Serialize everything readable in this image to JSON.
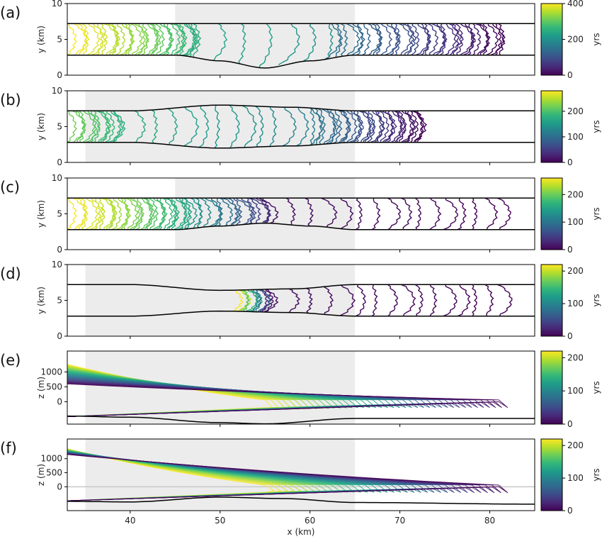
{
  "figure": {
    "xlabel": "x (km)",
    "colormap": [
      "#440154",
      "#482878",
      "#3e4a89",
      "#31688e",
      "#26828e",
      "#1f9e89",
      "#35b779",
      "#6ece58",
      "#b5de2b",
      "#fde725"
    ],
    "shade_color": "#ececec"
  },
  "chart_data": [
    {
      "type": "line",
      "label": "(a)",
      "ylabel": "y (km)",
      "xlim": [
        33,
        85
      ],
      "ylim": [
        0,
        10
      ],
      "yticks": [
        0,
        5,
        10
      ],
      "shade": [
        45,
        65
      ],
      "colorbar": {
        "label": "yrs",
        "max": 400,
        "ticks": [
          0,
          200,
          400
        ]
      },
      "channel": {
        "type": "plan",
        "top": [
          [
            33,
            7.2
          ],
          [
            85,
            7.2
          ]
        ],
        "bottom": [
          [
            33,
            2.8
          ],
          [
            45,
            2.8
          ],
          [
            50,
            2.0
          ],
          [
            55,
            1.0
          ],
          [
            60,
            2.0
          ],
          [
            65,
            2.8
          ],
          [
            85,
            2.8
          ]
        ]
      },
      "contours": [
        {
          "x_start": 33,
          "x_end": 47,
          "count": 34,
          "t_start": 400,
          "t_end": 250
        },
        {
          "x_start": 46,
          "x_end": 62,
          "count": 7,
          "t_start": 240,
          "t_end": 200
        },
        {
          "x_start": 62,
          "x_end": 81,
          "count": 40,
          "t_start": 150,
          "t_end": 0
        }
      ]
    },
    {
      "type": "line",
      "label": "(b)",
      "ylabel": "y (km)",
      "xlim": [
        33,
        85
      ],
      "ylim": [
        0,
        10
      ],
      "yticks": [
        0,
        5,
        10
      ],
      "shade": [
        35,
        65
      ],
      "colorbar": {
        "label": "yrs",
        "max": 280,
        "ticks": [
          0,
          100,
          200
        ]
      },
      "channel": {
        "type": "plan",
        "top": [
          [
            33,
            7.2
          ],
          [
            40,
            7.2
          ],
          [
            50,
            8.0
          ],
          [
            58,
            7.7
          ],
          [
            65,
            7.2
          ],
          [
            85,
            7.2
          ]
        ],
        "bottom": [
          [
            33,
            2.8
          ],
          [
            40,
            2.8
          ],
          [
            50,
            2.0
          ],
          [
            58,
            2.3
          ],
          [
            65,
            2.8
          ],
          [
            85,
            2.8
          ]
        ]
      },
      "contours": [
        {
          "x_start": 33,
          "x_end": 38,
          "count": 14,
          "t_start": 220,
          "t_end": 180
        },
        {
          "x_start": 38,
          "x_end": 60,
          "count": 14,
          "t_start": 175,
          "t_end": 120
        },
        {
          "x_start": 60,
          "x_end": 72,
          "count": 36,
          "t_start": 110,
          "t_end": 0
        }
      ]
    },
    {
      "type": "line",
      "label": "(c)",
      "ylabel": "y (km)",
      "xlim": [
        33,
        85
      ],
      "ylim": [
        0,
        10
      ],
      "yticks": [
        0,
        5,
        10
      ],
      "shade": [
        45,
        65
      ],
      "colorbar": {
        "label": "yrs",
        "max": 260,
        "ticks": [
          0,
          100,
          200
        ]
      },
      "channel": {
        "type": "plan",
        "top": [
          [
            33,
            7.2
          ],
          [
            85,
            7.2
          ]
        ],
        "bottom": [
          [
            33,
            2.8
          ],
          [
            45,
            2.8
          ],
          [
            50,
            3.3
          ],
          [
            55,
            3.7
          ],
          [
            60,
            3.3
          ],
          [
            65,
            2.8
          ],
          [
            85,
            2.8
          ]
        ]
      },
      "contours": [
        {
          "x_start": 33,
          "x_end": 46,
          "count": 34,
          "t_start": 260,
          "t_end": 150
        },
        {
          "x_start": 46,
          "x_end": 55,
          "count": 18,
          "t_start": 140,
          "t_end": 30
        },
        {
          "x_start": 55,
          "x_end": 81,
          "count": 16,
          "t_start": 10,
          "t_end": 0
        }
      ]
    },
    {
      "type": "line",
      "label": "(d)",
      "ylabel": "y (km)",
      "xlim": [
        33,
        85
      ],
      "ylim": [
        0,
        10
      ],
      "yticks": [
        0,
        5,
        10
      ],
      "shade": [
        35,
        65
      ],
      "colorbar": {
        "label": "yrs",
        "max": 220,
        "ticks": [
          0,
          100,
          200
        ]
      },
      "channel": {
        "type": "plan",
        "top": [
          [
            33,
            7.2
          ],
          [
            40,
            7.2
          ],
          [
            50,
            6.4
          ],
          [
            58,
            6.6
          ],
          [
            65,
            7.2
          ],
          [
            85,
            7.2
          ]
        ],
        "bottom": [
          [
            33,
            2.8
          ],
          [
            40,
            2.8
          ],
          [
            50,
            3.5
          ],
          [
            58,
            3.3
          ],
          [
            65,
            2.8
          ],
          [
            85,
            2.8
          ]
        ]
      },
      "contours": [
        {
          "x_start": 51.5,
          "x_end": 55,
          "count": 12,
          "t_start": 220,
          "t_end": 10
        },
        {
          "x_start": 55,
          "x_end": 81,
          "count": 16,
          "t_start": 8,
          "t_end": 0
        }
      ]
    },
    {
      "type": "line",
      "label": "(e)",
      "ylabel": "z (m)",
      "xlim": [
        33,
        85
      ],
      "ylim": [
        -750,
        1700
      ],
      "yticks": [
        0,
        500,
        1000
      ],
      "shade": [
        35,
        65
      ],
      "colorbar": {
        "label": "yrs",
        "max": 220,
        "ticks": [
          0,
          100,
          200
        ]
      },
      "channel": {
        "type": "section",
        "zero_line": false,
        "bed": [
          [
            33,
            -480
          ],
          [
            40,
            -520
          ],
          [
            50,
            -700
          ],
          [
            55,
            -740
          ],
          [
            65,
            -560
          ],
          [
            85,
            -560
          ]
        ]
      },
      "contours": [
        {
          "x_start": 33,
          "x_end": 82,
          "count": 40,
          "t_start": 220,
          "t_end": 0,
          "surface_start": [
            1250,
            600
          ],
          "grounding_x": [
            55,
            81
          ]
        }
      ]
    },
    {
      "type": "line",
      "label": "(f)",
      "ylabel": "z (m)",
      "xlim": [
        33,
        85
      ],
      "ylim": [
        -850,
        1700
      ],
      "yticks": [
        0,
        500,
        1000
      ],
      "shade": [
        35,
        65
      ],
      "colorbar": {
        "label": "yrs",
        "max": 220,
        "ticks": [
          0,
          100,
          200
        ]
      },
      "xticks": [
        40,
        50,
        60,
        70,
        80
      ],
      "channel": {
        "type": "section",
        "zero_line": true,
        "bed": [
          [
            33,
            -520
          ],
          [
            40,
            -540
          ],
          [
            50,
            -370
          ],
          [
            57,
            -420
          ],
          [
            65,
            -560
          ],
          [
            85,
            -620
          ]
        ]
      },
      "contours": [
        {
          "x_start": 33,
          "x_end": 82,
          "count": 36,
          "t_start": 220,
          "t_end": 0,
          "surface_start": [
            1350,
            1150
          ],
          "grounding_x": [
            55,
            81
          ]
        }
      ]
    }
  ]
}
